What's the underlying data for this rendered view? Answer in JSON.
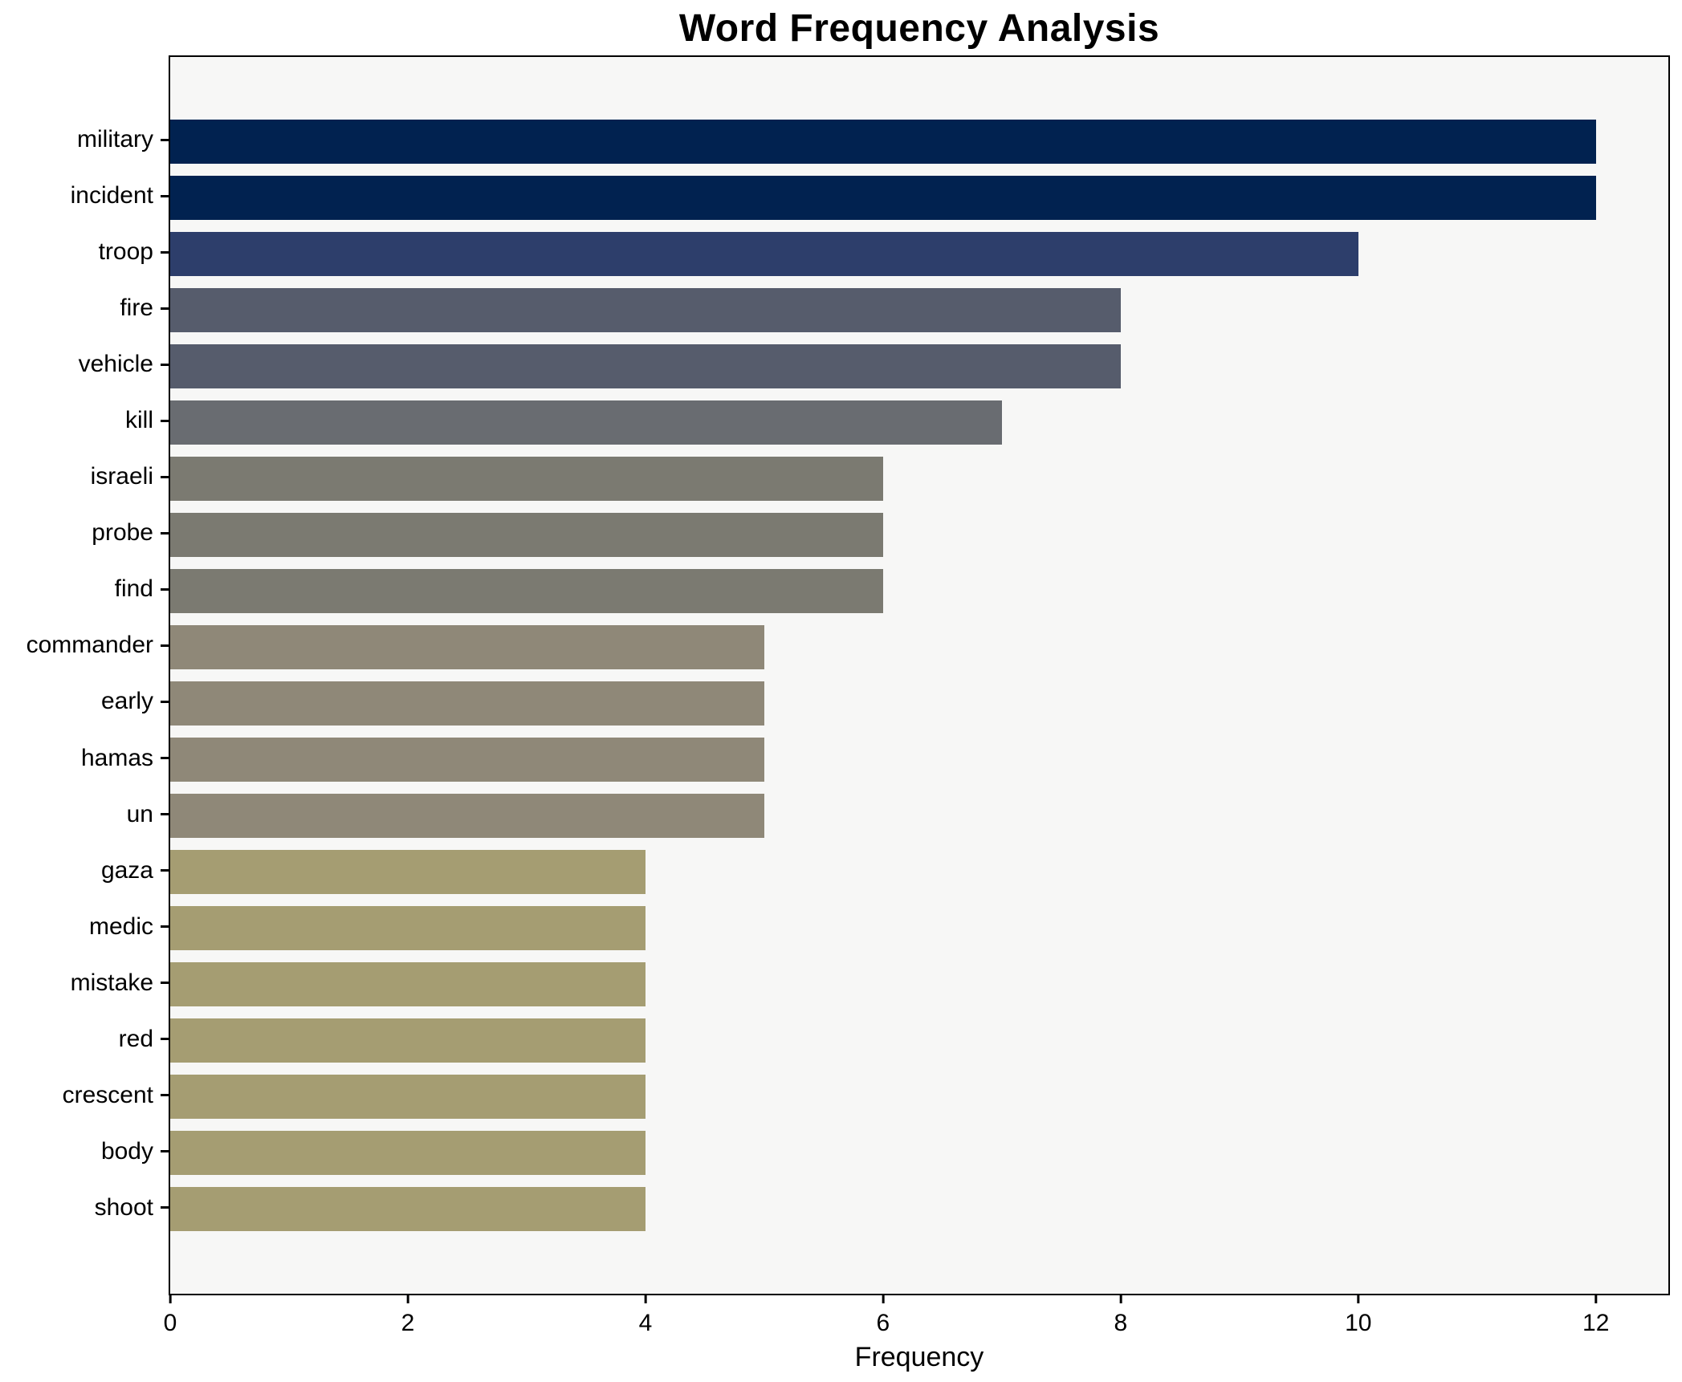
{
  "title": "Word Frequency Analysis",
  "chart_data": {
    "type": "bar",
    "orientation": "horizontal",
    "title": "Word Frequency Analysis",
    "xlabel": "Frequency",
    "ylabel": "",
    "categories": [
      "military",
      "incident",
      "troop",
      "fire",
      "vehicle",
      "kill",
      "israeli",
      "probe",
      "find",
      "commander",
      "early",
      "hamas",
      "un",
      "gaza",
      "medic",
      "mistake",
      "red",
      "crescent",
      "body",
      "shoot"
    ],
    "values": [
      12,
      12,
      10,
      8,
      8,
      7,
      6,
      6,
      6,
      5,
      5,
      5,
      5,
      4,
      4,
      4,
      4,
      4,
      4,
      4
    ],
    "bar_colors": [
      "#012250",
      "#012250",
      "#2d3e6b",
      "#565c6c",
      "#565c6c",
      "#696c71",
      "#7b7a71",
      "#7b7a71",
      "#7b7a71",
      "#8f8878",
      "#8f8878",
      "#8f8878",
      "#8f8878",
      "#a59d72",
      "#a59d72",
      "#a59d72",
      "#a59d72",
      "#a59d72",
      "#a59d72",
      "#a59d72"
    ],
    "xlim": [
      0,
      12.61
    ],
    "x_ticks": [
      0,
      2,
      4,
      6,
      8,
      10,
      12
    ],
    "grid": false,
    "legend_position": "none",
    "plot_background": "#f7f7f6",
    "spine_color": "#000000"
  }
}
